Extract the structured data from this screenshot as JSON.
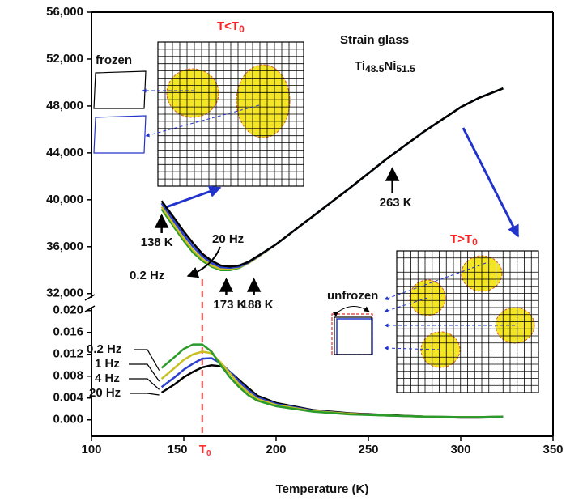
{
  "chart_data": [
    {
      "type": "line",
      "xlim": [
        100,
        350
      ],
      "ylim": [
        31500,
        56000
      ],
      "yticks": [
        {
          "value": 32000,
          "label": "32,000"
        },
        {
          "value": 36000,
          "label": "36,000"
        },
        {
          "value": 40000,
          "label": "40,000"
        },
        {
          "value": 44000,
          "label": "44,000"
        },
        {
          "value": 48000,
          "label": "48,000"
        },
        {
          "value": 52000,
          "label": "52,000"
        },
        {
          "value": 56000,
          "label": "56,000"
        }
      ],
      "x": [
        138,
        145,
        150,
        155,
        160,
        165,
        170,
        175,
        180,
        185,
        190,
        200,
        220,
        240,
        260,
        280,
        300,
        310,
        323
      ],
      "series": [
        {
          "color": "#000000",
          "values": [
            39900,
            38400,
            37300,
            36300,
            35400,
            34800,
            34400,
            34300,
            34400,
            34700,
            35200,
            36200,
            38600,
            41000,
            43500,
            45800,
            47900,
            48700,
            49500
          ]
        },
        {
          "color": "#2b3fd0",
          "values": [
            39700,
            38100,
            37000,
            36000,
            35200,
            34600,
            34250,
            34200,
            34300,
            34650,
            35150,
            36200,
            38600,
            41000,
            43500,
            45800,
            47900,
            48700,
            49500
          ]
        },
        {
          "color": "#c8c020",
          "values": [
            39400,
            37800,
            36700,
            35700,
            34950,
            34400,
            34100,
            34100,
            34250,
            34600,
            35100,
            36200,
            38600,
            41000,
            43500,
            45800,
            47900,
            48700,
            49500
          ]
        },
        {
          "color": "#2a9a2a",
          "values": [
            39200,
            37600,
            36500,
            35500,
            34800,
            34300,
            34000,
            34000,
            34200,
            34600,
            35100,
            36200,
            38600,
            41000,
            43500,
            45800,
            47900,
            48700,
            49500
          ]
        }
      ],
      "annotations": [
        {
          "text": "138 K",
          "x": 138
        },
        {
          "text": "173 K",
          "x": 173
        },
        {
          "text": "188 K",
          "x": 188
        },
        {
          "text": "263 K",
          "x": 263
        },
        {
          "text": "20 Hz"
        },
        {
          "text": "0.2 Hz"
        },
        {
          "text": "frozen"
        },
        {
          "text": "unfrozen"
        },
        {
          "text": "Strain glass"
        }
      ],
      "formula": [
        {
          "text": "Ti",
          "sub": "48.5"
        },
        {
          "text": "Ni",
          "sub": "51.5"
        }
      ],
      "inset_titles": [
        {
          "text": "T<T",
          "sub": "0"
        },
        {
          "text": "T>T",
          "sub": "0"
        }
      ]
    },
    {
      "type": "line",
      "xlabel": "Temperature (K)",
      "xlim": [
        100,
        350
      ],
      "xticks": [
        100,
        150,
        200,
        250,
        300,
        350
      ],
      "ylim": [
        -0.003,
        0.021
      ],
      "yticks": [
        {
          "value": 0,
          "label": "0.000"
        },
        {
          "value": 0.004,
          "label": "0.004"
        },
        {
          "value": 0.008,
          "label": "0.008"
        },
        {
          "value": 0.012,
          "label": "0.012"
        },
        {
          "value": 0.016,
          "label": "0.016"
        },
        {
          "value": 0.02,
          "label": "0.020"
        }
      ],
      "t0_marker": {
        "x": 160,
        "text": "T",
        "sub": "0"
      },
      "x": [
        138,
        145,
        150,
        155,
        160,
        165,
        170,
        175,
        180,
        185,
        190,
        200,
        220,
        240,
        260,
        280,
        300,
        310,
        323
      ],
      "series": [
        {
          "name": "0.2 Hz",
          "color": "#2a9a2a",
          "values": [
            0.0095,
            0.0115,
            0.013,
            0.0138,
            0.0138,
            0.0125,
            0.01,
            0.0078,
            0.006,
            0.0045,
            0.0035,
            0.0025,
            0.0015,
            0.001,
            0.0008,
            0.0006,
            0.0005,
            0.0005,
            0.0006
          ]
        },
        {
          "name": "1 Hz",
          "color": "#c8c020",
          "values": [
            0.0075,
            0.0095,
            0.011,
            0.012,
            0.0125,
            0.0122,
            0.0105,
            0.0085,
            0.0065,
            0.005,
            0.0038,
            0.0027,
            0.0016,
            0.0011,
            0.0008,
            0.0006,
            0.0005,
            0.0005,
            0.0006
          ]
        },
        {
          "name": "4 Hz",
          "color": "#2b3fd0",
          "values": [
            0.006,
            0.0078,
            0.0092,
            0.0103,
            0.0112,
            0.0113,
            0.0104,
            0.0088,
            0.007,
            0.0054,
            0.0041,
            0.0029,
            0.0017,
            0.0011,
            0.0008,
            0.0006,
            0.0005,
            0.0005,
            0.0006
          ]
        },
        {
          "name": "20 Hz",
          "color": "#000000",
          "values": [
            0.005,
            0.0065,
            0.0078,
            0.0088,
            0.0096,
            0.01,
            0.0098,
            0.0088,
            0.0073,
            0.0058,
            0.0044,
            0.0031,
            0.0018,
            0.0012,
            0.0009,
            0.0006,
            0.0004,
            0.0004,
            0.0005
          ]
        }
      ]
    }
  ]
}
